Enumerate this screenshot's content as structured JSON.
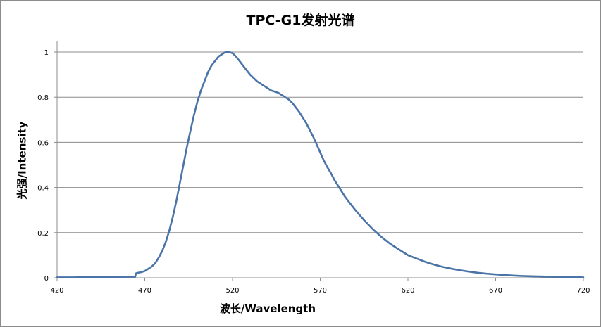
{
  "chart_data": {
    "type": "line",
    "title": "TPC-G1发射光谱",
    "xlabel": "波长/Wavelength",
    "ylabel": "光强/Intensity",
    "xlim": [
      420,
      720
    ],
    "ylim": [
      0,
      1.05
    ],
    "x_ticks": [
      "420",
      "470",
      "520",
      "570",
      "620",
      "670",
      "720"
    ],
    "y_ticks": [
      "0",
      "0.2",
      "0.4",
      "0.6",
      "0.8",
      "1"
    ],
    "grid": true,
    "line_color": "#4a74a8",
    "series": [
      {
        "x": [
          420,
          425,
          430,
          435,
          440,
          445,
          450,
          455,
          460,
          464.5,
          465,
          466,
          468,
          470,
          472,
          474,
          476,
          478,
          480,
          482,
          484,
          486,
          488,
          490,
          492,
          494,
          496,
          498,
          500,
          502,
          504,
          506,
          508,
          510,
          512,
          514,
          516,
          518,
          520,
          522,
          524,
          526,
          528,
          530,
          532,
          534,
          536,
          538,
          540,
          542,
          544,
          546,
          548,
          550,
          552,
          554,
          556,
          558,
          560,
          562,
          564,
          566,
          568,
          570,
          572,
          574,
          576,
          578,
          580,
          582,
          584,
          586,
          588,
          590,
          595,
          600,
          605,
          610,
          615,
          620,
          625,
          630,
          635,
          640,
          645,
          650,
          655,
          660,
          665,
          670,
          675,
          680,
          685,
          690,
          695,
          700,
          705,
          710,
          715,
          720
        ],
        "y": [
          0.002,
          0.002,
          0.002,
          0.003,
          0.003,
          0.004,
          0.004,
          0.004,
          0.005,
          0.005,
          0.02,
          0.022,
          0.025,
          0.03,
          0.04,
          0.05,
          0.065,
          0.09,
          0.12,
          0.16,
          0.21,
          0.27,
          0.34,
          0.42,
          0.5,
          0.58,
          0.65,
          0.72,
          0.78,
          0.83,
          0.87,
          0.91,
          0.94,
          0.96,
          0.98,
          0.99,
          1.0,
          1.0,
          0.995,
          0.98,
          0.96,
          0.94,
          0.92,
          0.9,
          0.885,
          0.87,
          0.86,
          0.85,
          0.84,
          0.83,
          0.825,
          0.82,
          0.81,
          0.8,
          0.79,
          0.775,
          0.755,
          0.735,
          0.71,
          0.685,
          0.655,
          0.625,
          0.59,
          0.555,
          0.52,
          0.49,
          0.465,
          0.435,
          0.41,
          0.385,
          0.36,
          0.34,
          0.32,
          0.3,
          0.255,
          0.215,
          0.18,
          0.15,
          0.125,
          0.1,
          0.085,
          0.07,
          0.058,
          0.048,
          0.04,
          0.033,
          0.027,
          0.022,
          0.018,
          0.015,
          0.012,
          0.01,
          0.008,
          0.007,
          0.006,
          0.005,
          0.004,
          0.003,
          0.003,
          0.002
        ]
      }
    ]
  }
}
